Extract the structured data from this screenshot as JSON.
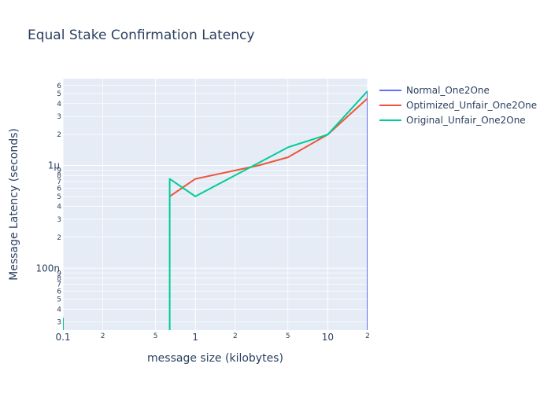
{
  "chart_data": {
    "type": "line",
    "title": "Equal Stake Confirmation Latency",
    "xlabel": "message size (kilobytes)",
    "ylabel": "Message Latency (seconds)",
    "x_scale": "log",
    "y_scale": "log",
    "xlim": [
      0.1,
      20
    ],
    "ylim": [
      2.5e-08,
      7e-06
    ],
    "grid": true,
    "legend_position": "top-right, outside plot",
    "colors": {
      "plot_background": "#e5ecf6",
      "gridline": "#ffffff",
      "text": "#2a3f5f"
    },
    "x_ticks": {
      "major": [
        {
          "value": 0.1,
          "label": "0.1"
        },
        {
          "value": 1,
          "label": "1"
        },
        {
          "value": 10,
          "label": "10"
        }
      ],
      "minor": [
        {
          "value": 0.2,
          "label": "2"
        },
        {
          "value": 0.5,
          "label": "5"
        },
        {
          "value": 2,
          "label": "2"
        },
        {
          "value": 5,
          "label": "5"
        },
        {
          "value": 20,
          "label": "2"
        }
      ]
    },
    "y_ticks": {
      "major": [
        {
          "value": 1e-07,
          "label": "100n"
        },
        {
          "value": 1e-06,
          "label": "1µ"
        }
      ],
      "minor": [
        {
          "value": 3e-08,
          "label": "3"
        },
        {
          "value": 4e-08,
          "label": "4"
        },
        {
          "value": 5e-08,
          "label": "5"
        },
        {
          "value": 6e-08,
          "label": "6"
        },
        {
          "value": 7e-08,
          "label": "7"
        },
        {
          "value": 8e-08,
          "label": "8"
        },
        {
          "value": 9e-08,
          "label": "9"
        },
        {
          "value": 2e-07,
          "label": "2"
        },
        {
          "value": 3e-07,
          "label": "3"
        },
        {
          "value": 4e-07,
          "label": "4"
        },
        {
          "value": 5e-07,
          "label": "5"
        },
        {
          "value": 6e-07,
          "label": "6"
        },
        {
          "value": 7e-07,
          "label": "7"
        },
        {
          "value": 8e-07,
          "label": "8"
        },
        {
          "value": 9e-07,
          "label": "9"
        },
        {
          "value": 2e-06,
          "label": "2"
        },
        {
          "value": 3e-06,
          "label": "3"
        },
        {
          "value": 4e-06,
          "label": "4"
        },
        {
          "value": 5e-06,
          "label": "5"
        },
        {
          "value": 6e-06,
          "label": "6"
        }
      ]
    },
    "series": [
      {
        "name": "Normal_One2One",
        "color": "#636efa",
        "points": [
          [
            20,
            5.2e-06
          ],
          [
            20,
            1e-08
          ]
        ]
      },
      {
        "name": "Optimized_Unfair_One2One",
        "color": "#ef553b",
        "points": [
          [
            0.64,
            5e-07
          ],
          [
            1,
            7.4e-07
          ],
          [
            3,
            1e-06
          ],
          [
            5,
            1.2e-06
          ],
          [
            10,
            2e-06
          ],
          [
            20,
            4.5e-06
          ]
        ]
      },
      {
        "name": "Original_Unfair_One2One",
        "color": "#00cc96",
        "points": [
          [
            0.1,
            3.3e-08
          ],
          [
            0.1,
            1e-08
          ],
          [
            0.64,
            1e-08
          ],
          [
            0.64,
            7.4e-07
          ],
          [
            1,
            5e-07
          ],
          [
            5,
            1.5e-06
          ],
          [
            10,
            2e-06
          ],
          [
            20,
            5.3e-06
          ]
        ]
      }
    ]
  }
}
